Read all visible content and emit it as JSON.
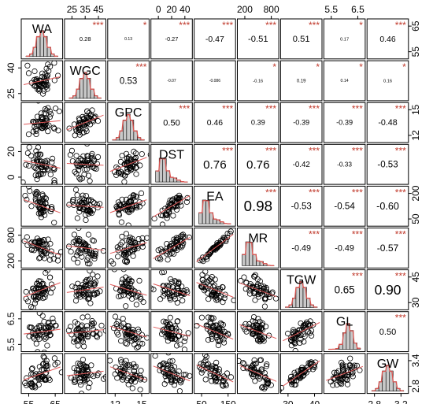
{
  "chart_data": {
    "type": "scatter-matrix",
    "variables": [
      "WA",
      "WGC",
      "GPC",
      "DST",
      "EA",
      "MR",
      "TGW",
      "GL",
      "GW"
    ],
    "ranges": {
      "WA": [
        52,
        68
      ],
      "WGC": [
        20,
        45
      ],
      "GPC": [
        11,
        19
      ],
      "DST": [
        0,
        45
      ],
      "EA": [
        30,
        220
      ],
      "MR": [
        150,
        1000
      ],
      "TGW": [
        24,
        50
      ],
      "GL": [
        5.3,
        7.4
      ],
      "GW": [
        2.75,
        3.5
      ]
    },
    "tick_labels": {
      "top": [
        {
          "var": "WGC",
          "values": [
            "25",
            "35",
            "45"
          ]
        },
        {
          "var": "DST",
          "values": [
            "0",
            "20",
            "40"
          ]
        },
        {
          "var": "MR",
          "values": [
            "200",
            "800"
          ]
        },
        {
          "var": "GL",
          "values": [
            "5.5",
            "6.5"
          ]
        }
      ],
      "right": [
        {
          "var": "WA",
          "values": [
            "65",
            "55"
          ]
        },
        {
          "var": "GPC",
          "values": [
            "15",
            "12"
          ]
        },
        {
          "var": "EA",
          "values": [
            "200",
            "50"
          ]
        },
        {
          "var": "TGW",
          "values": [
            "45",
            "30"
          ]
        },
        {
          "var": "GW",
          "values": [
            "3.4",
            "2.8"
          ]
        }
      ],
      "bottom": [
        {
          "var": "WA",
          "values": [
            "55",
            "65"
          ]
        },
        {
          "var": "GPC",
          "values": [
            "12",
            "15"
          ]
        },
        {
          "var": "EA",
          "values": [
            "50",
            "150"
          ]
        },
        {
          "var": "TGW",
          "values": [
            "30",
            "40"
          ]
        },
        {
          "var": "GW",
          "values": [
            "2.8",
            "3.2"
          ]
        }
      ],
      "left": [
        {
          "var": "WGC",
          "values": [
            "40",
            "25"
          ]
        },
        {
          "var": "DST",
          "values": [
            "20",
            "0"
          ]
        },
        {
          "var": "MR",
          "values": [
            "800",
            "200"
          ]
        },
        {
          "var": "GL",
          "values": [
            "6.5",
            "5.5"
          ]
        }
      ]
    },
    "correlations": [
      {
        "row": "WA",
        "col": "WGC",
        "value": "0.28",
        "stars": "***"
      },
      {
        "row": "WA",
        "col": "GPC",
        "value": "0.13",
        "stars": "*"
      },
      {
        "row": "WA",
        "col": "DST",
        "value": "-0.27",
        "stars": "***"
      },
      {
        "row": "WA",
        "col": "EA",
        "value": "-0.47",
        "stars": "***"
      },
      {
        "row": "WA",
        "col": "MR",
        "value": "-0.51",
        "stars": "***"
      },
      {
        "row": "WA",
        "col": "TGW",
        "value": "0.51",
        "stars": "***"
      },
      {
        "row": "WA",
        "col": "GL",
        "value": "0.17",
        "stars": "*"
      },
      {
        "row": "WA",
        "col": "GW",
        "value": "0.46",
        "stars": "***"
      },
      {
        "row": "WGC",
        "col": "GPC",
        "value": "0.53",
        "stars": "***"
      },
      {
        "row": "WGC",
        "col": "DST",
        "value": "-0.07",
        "stars": ""
      },
      {
        "row": "WGC",
        "col": "EA",
        "value": "-0.086",
        "stars": ""
      },
      {
        "row": "WGC",
        "col": "MR",
        "value": "-0.16",
        "stars": "*"
      },
      {
        "row": "WGC",
        "col": "TGW",
        "value": "0.19",
        "stars": "*"
      },
      {
        "row": "WGC",
        "col": "GL",
        "value": "0.14",
        "stars": "*"
      },
      {
        "row": "WGC",
        "col": "GW",
        "value": "0.16",
        "stars": "*"
      },
      {
        "row": "GPC",
        "col": "DST",
        "value": "0.50",
        "stars": "***"
      },
      {
        "row": "GPC",
        "col": "EA",
        "value": "0.46",
        "stars": "***"
      },
      {
        "row": "GPC",
        "col": "MR",
        "value": "0.39",
        "stars": "***"
      },
      {
        "row": "GPC",
        "col": "TGW",
        "value": "-0.39",
        "stars": "***"
      },
      {
        "row": "GPC",
        "col": "GL",
        "value": "-0.39",
        "stars": "***"
      },
      {
        "row": "GPC",
        "col": "GW",
        "value": "-0.48",
        "stars": "***"
      },
      {
        "row": "DST",
        "col": "EA",
        "value": "0.76",
        "stars": "***"
      },
      {
        "row": "DST",
        "col": "MR",
        "value": "0.76",
        "stars": "***"
      },
      {
        "row": "DST",
        "col": "TGW",
        "value": "-0.42",
        "stars": "***"
      },
      {
        "row": "DST",
        "col": "GL",
        "value": "-0.33",
        "stars": "***"
      },
      {
        "row": "DST",
        "col": "GW",
        "value": "-0.53",
        "stars": "***"
      },
      {
        "row": "EA",
        "col": "MR",
        "value": "0.98",
        "stars": "***"
      },
      {
        "row": "EA",
        "col": "TGW",
        "value": "-0.53",
        "stars": "***"
      },
      {
        "row": "EA",
        "col": "GL",
        "value": "-0.54",
        "stars": "***"
      },
      {
        "row": "EA",
        "col": "GW",
        "value": "-0.60",
        "stars": "***"
      },
      {
        "row": "MR",
        "col": "TGW",
        "value": "-0.49",
        "stars": "***"
      },
      {
        "row": "MR",
        "col": "GL",
        "value": "-0.49",
        "stars": "***"
      },
      {
        "row": "MR",
        "col": "GW",
        "value": "-0.57",
        "stars": "***"
      },
      {
        "row": "TGW",
        "col": "GL",
        "value": "0.65",
        "stars": "***"
      },
      {
        "row": "TGW",
        "col": "GW",
        "value": "0.90",
        "stars": "***"
      },
      {
        "row": "GL",
        "col": "GW",
        "value": "0.50",
        "stars": "***"
      }
    ],
    "star_color": "#c0392b",
    "fit_color": "#e05a5a",
    "density_color": "#d9534f",
    "hist_fill": "#c8c8c8"
  }
}
